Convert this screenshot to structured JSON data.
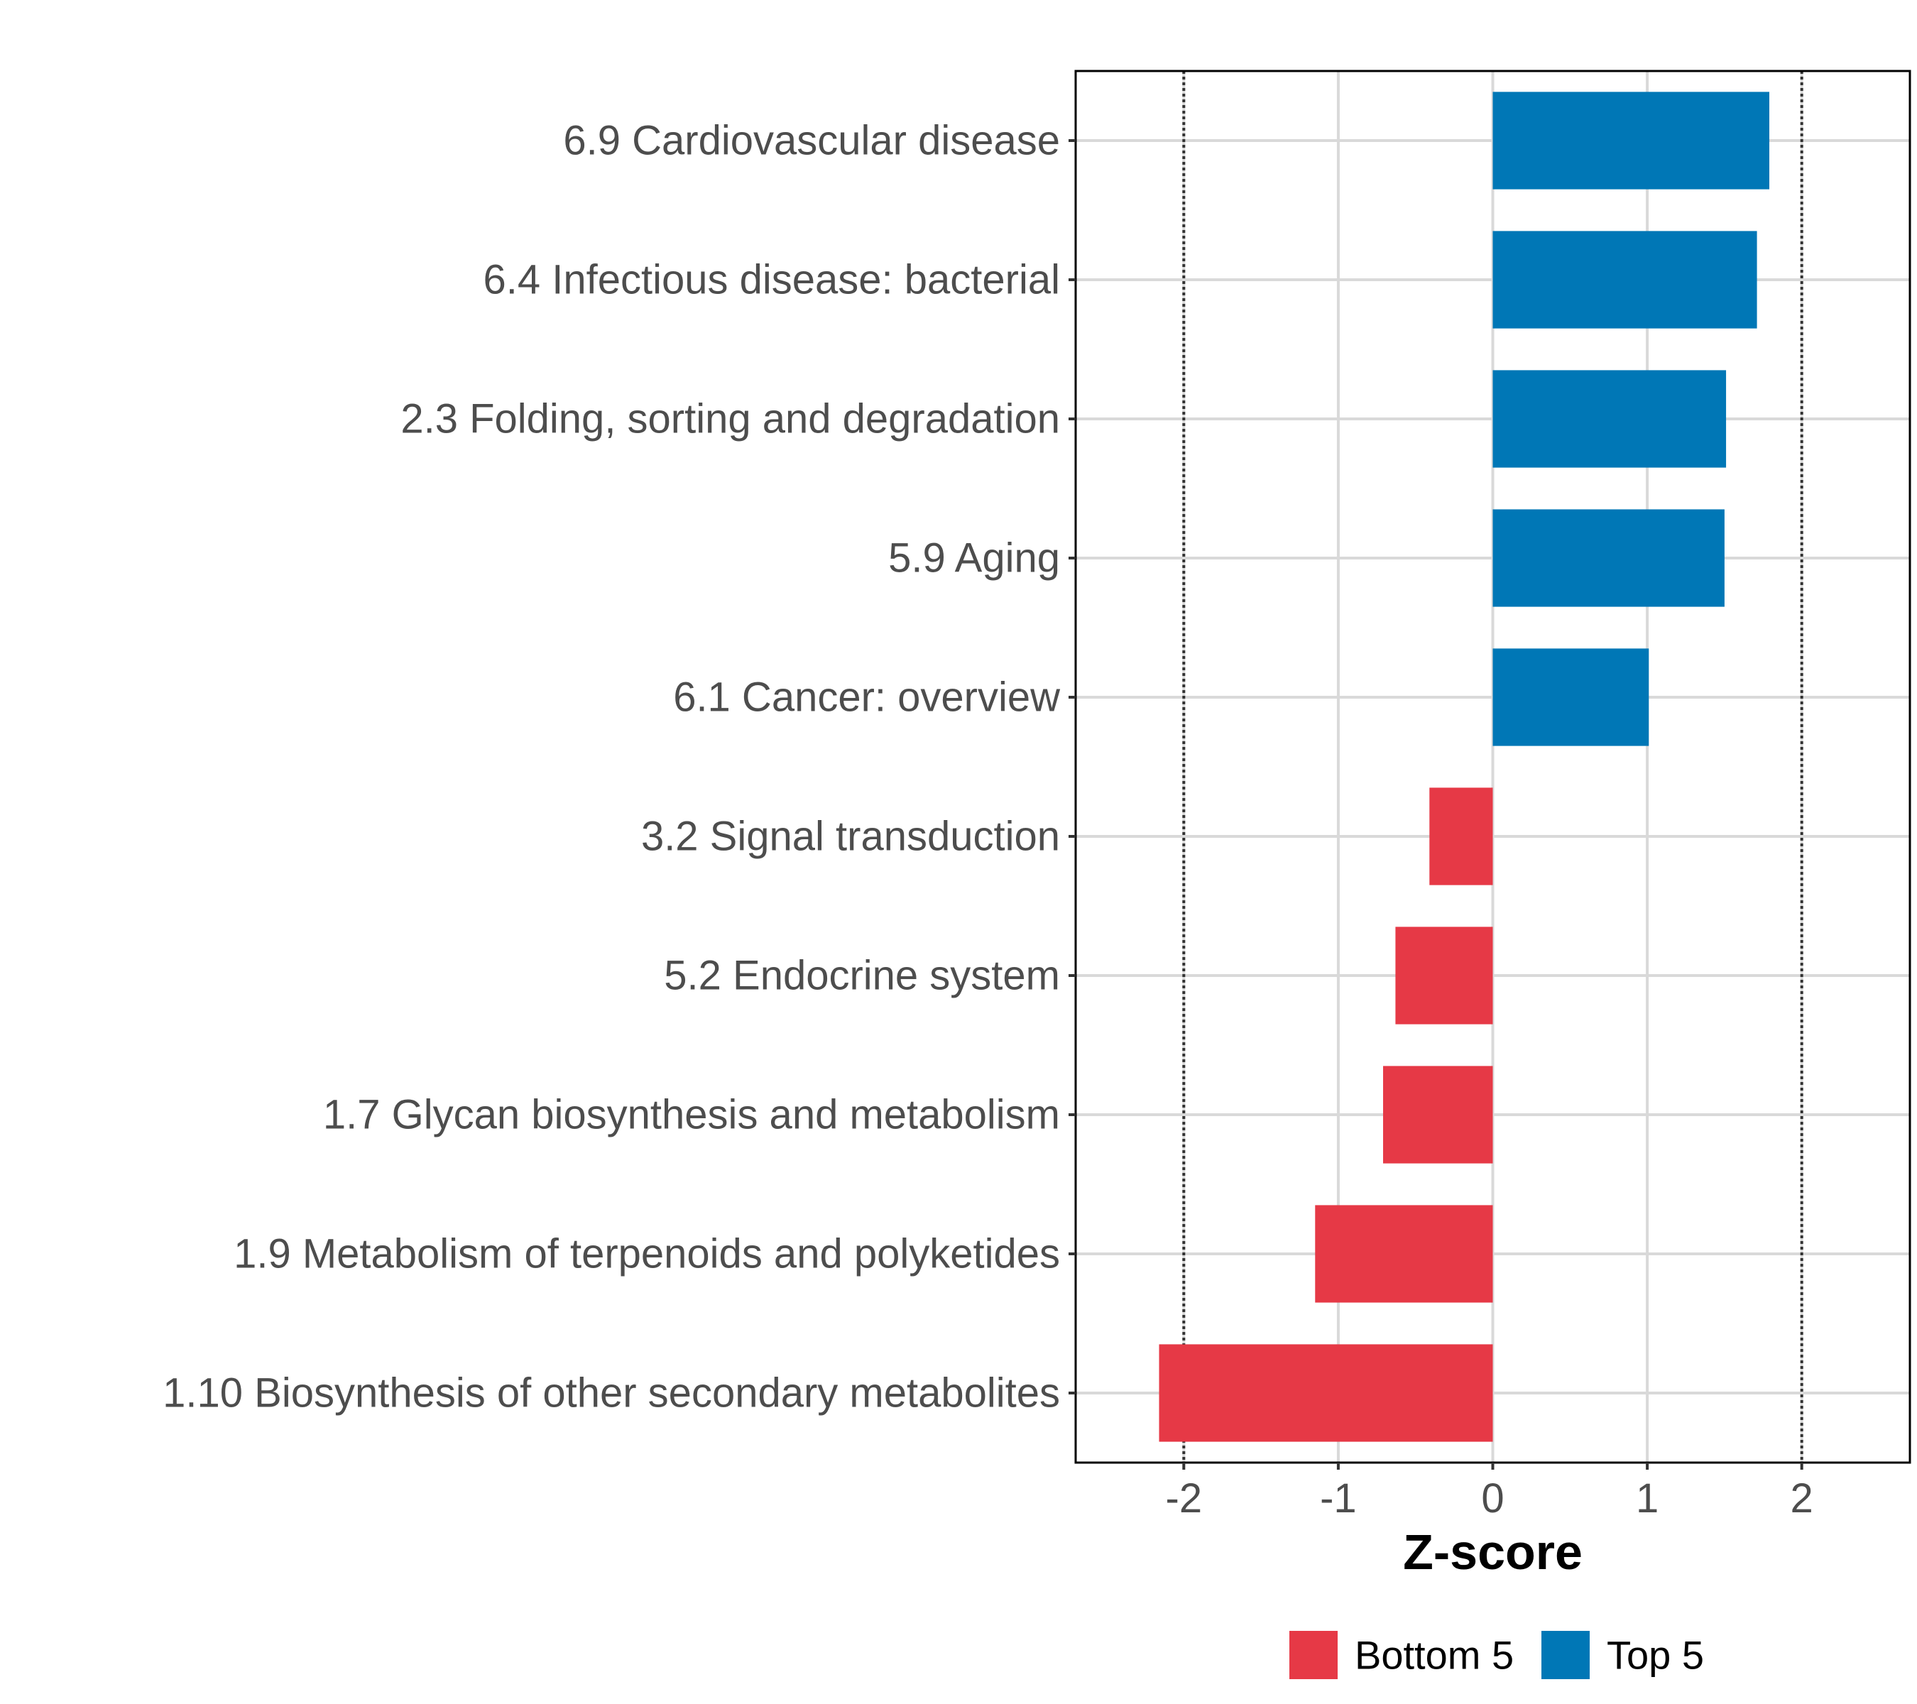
{
  "chart_data": {
    "type": "bar",
    "orientation": "horizontal",
    "categories": [
      "6.9 Cardiovascular disease",
      "6.4 Infectious disease: bacterial",
      "2.3 Folding, sorting and degradation",
      "5.9 Aging",
      "6.1 Cancer: overview",
      "3.2 Signal transduction",
      "5.2 Endocrine system",
      "1.7 Glycan biosynthesis and metabolism",
      "1.9 Metabolism of terpenoids and polyketides",
      "1.10 Biosynthesis of other secondary metabolites"
    ],
    "values": [
      1.79,
      1.71,
      1.51,
      1.5,
      1.01,
      -0.41,
      -0.63,
      -0.71,
      -1.15,
      -2.16
    ],
    "groups": [
      "Top 5",
      "Top 5",
      "Top 5",
      "Top 5",
      "Top 5",
      "Bottom 5",
      "Bottom 5",
      "Bottom 5",
      "Bottom 5",
      "Bottom 5"
    ],
    "xlabel": "Z-score",
    "ylabel": "",
    "xlim": [
      -2.7,
      2.7
    ],
    "xticks": [
      -2,
      -1,
      0,
      1,
      2
    ],
    "xtick_labels": [
      "-2",
      "-1",
      "0",
      "1",
      "2"
    ],
    "reference_lines": [
      -2,
      2
    ],
    "grid": true,
    "legend": {
      "position": "bottom",
      "entries": [
        {
          "label": "Bottom 5",
          "color": "#E63946"
        },
        {
          "label": "Top 5",
          "color": "#0077B6"
        }
      ]
    }
  }
}
